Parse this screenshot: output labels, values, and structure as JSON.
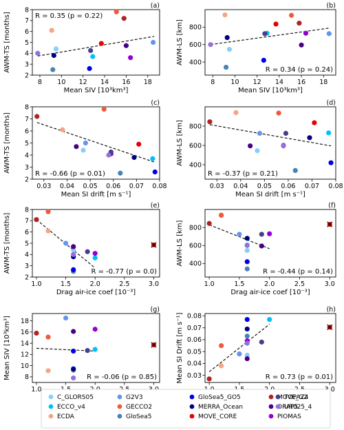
{
  "legend": [
    {
      "name": "C_GLORS05",
      "color": "#87cefa"
    },
    {
      "name": "ECCO_v4",
      "color": "#00bfff"
    },
    {
      "name": "ECDA",
      "color": "#f4a582"
    },
    {
      "name": "G2V3",
      "color": "#6495ed"
    },
    {
      "name": "GECCO2",
      "color": "#ef5a3c"
    },
    {
      "name": "GloSea5",
      "color": "#4682b4"
    },
    {
      "name": "GloSea5_GO5",
      "color": "#0000e6"
    },
    {
      "name": "MERRA_Ocean",
      "color": "#000080"
    },
    {
      "name": "MOVE_CORE",
      "color": "#e60000"
    },
    {
      "name": "MOVE_G2",
      "color": "#b22222"
    },
    {
      "name": "ORAP5",
      "color": "#4b0082"
    },
    {
      "name": "PIOMAS",
      "color": "#9400d3"
    },
    {
      "name": "TOPAZ4",
      "color": "#483d8b"
    },
    {
      "name": "UR025_4",
      "color": "#9370db"
    }
  ],
  "chart_data": [
    {
      "type": "scatter",
      "panel": "(a)",
      "xlabel": "Mean SIV [10³km³]",
      "ylabel": "AWM-TS [months]",
      "xlim": [
        7.3,
        19.1
      ],
      "ylim": [
        2,
        8
      ],
      "xticks": [
        8,
        10,
        12,
        14,
        16,
        18
      ],
      "yticks": [
        2,
        3,
        4,
        5,
        6,
        7,
        8
      ],
      "stat": "R = 0.35 (p = 0.22)",
      "stat_pos": "top-left",
      "fit": [
        [
          7.8,
          3.75
        ],
        [
          18.6,
          5.55
        ]
      ],
      "points": [
        {
          "model": "C_GLORS05",
          "x": 9.5,
          "y": 4.4
        },
        {
          "model": "ECCO_v4",
          "x": 12.9,
          "y": 3.7
        },
        {
          "model": "ECDA",
          "x": 9.1,
          "y": 6.1
        },
        {
          "model": "G2V3",
          "x": 18.5,
          "y": 5.0
        },
        {
          "model": "GECCO2",
          "x": 15.1,
          "y": 7.8
        },
        {
          "model": "GloSea5",
          "x": 9.2,
          "y": 2.5
        },
        {
          "model": "GloSea5_GO5",
          "x": 12.6,
          "y": 2.6
        },
        {
          "model": "MERRA_Ocean",
          "x": 9.3,
          "y": 3.8
        },
        {
          "model": "MOVE_CORE",
          "x": 13.7,
          "y": 4.9
        },
        {
          "model": "MOVE_G2",
          "x": 15.8,
          "y": 7.2
        },
        {
          "model": "ORAP5",
          "x": 16.0,
          "y": 4.7
        },
        {
          "model": "PIOMAS",
          "x": 16.4,
          "y": 3.6
        },
        {
          "model": "TOPAZ4",
          "x": 12.7,
          "y": 4.25
        },
        {
          "model": "UR025_4",
          "x": 7.8,
          "y": 4.0
        }
      ]
    },
    {
      "type": "scatter",
      "panel": "(b)",
      "xlabel": "Mean SIV [10³km³]",
      "ylabel": "AWM-LS [km]",
      "xlim": [
        7.3,
        19.1
      ],
      "ylim": [
        250,
        1000
      ],
      "xticks": [
        8,
        10,
        12,
        14,
        16,
        18
      ],
      "yticks": [
        400,
        600,
        800
      ],
      "stat": "R = 0.34 (p = 0.24)",
      "stat_pos": "bottom-right",
      "fit": [
        [
          7.8,
          600
        ],
        [
          18.6,
          790
        ]
      ],
      "points": [
        {
          "model": "C_GLORS05",
          "x": 9.5,
          "y": 545
        },
        {
          "model": "ECCO_v4",
          "x": 12.9,
          "y": 730
        },
        {
          "model": "ECDA",
          "x": 9.1,
          "y": 940
        },
        {
          "model": "G2V3",
          "x": 18.5,
          "y": 725
        },
        {
          "model": "GECCO2",
          "x": 15.1,
          "y": 935
        },
        {
          "model": "GloSea5",
          "x": 9.2,
          "y": 340
        },
        {
          "model": "GloSea5_GO5",
          "x": 12.6,
          "y": 420
        },
        {
          "model": "MERRA_Ocean",
          "x": 9.3,
          "y": 680
        },
        {
          "model": "MOVE_CORE",
          "x": 13.7,
          "y": 835
        },
        {
          "model": "MOVE_G2",
          "x": 15.8,
          "y": 845
        },
        {
          "model": "ORAP5",
          "x": 16.0,
          "y": 595
        },
        {
          "model": "PIOMAS",
          "x": 16.4,
          "y": 730
        },
        {
          "model": "TOPAZ4",
          "x": 12.7,
          "y": 725
        },
        {
          "model": "UR025_4",
          "x": 7.8,
          "y": 600
        }
      ]
    },
    {
      "type": "scatter",
      "panel": "(c)",
      "xlabel": "Mean SI drift  [m s⁻¹]",
      "ylabel": "AWM-TS [months]",
      "xlim": [
        0.025,
        0.08
      ],
      "ylim": [
        2,
        8
      ],
      "xticks": [
        0.03,
        0.04,
        0.05,
        0.06,
        0.07,
        0.08
      ],
      "yticks": [
        2,
        3,
        4,
        5,
        6,
        7,
        8
      ],
      "stat": "R = -0.66 (p = 0.01)",
      "stat_pos": "bottom-left",
      "fit": [
        [
          0.027,
          6.7
        ],
        [
          0.078,
          3.4
        ]
      ],
      "points": [
        {
          "model": "C_GLORS05",
          "x": 0.047,
          "y": 4.4
        },
        {
          "model": "ECCO_v4",
          "x": 0.077,
          "y": 3.7
        },
        {
          "model": "ECDA",
          "x": 0.038,
          "y": 6.1
        },
        {
          "model": "G2V3",
          "x": 0.048,
          "y": 5.0
        },
        {
          "model": "GECCO2",
          "x": 0.056,
          "y": 7.8
        },
        {
          "model": "GloSea5",
          "x": 0.063,
          "y": 2.5
        },
        {
          "model": "GloSea5_GO5",
          "x": 0.078,
          "y": 2.6
        },
        {
          "model": "MERRA_Ocean",
          "x": 0.069,
          "y": 3.8
        },
        {
          "model": "MOVE_CORE",
          "x": 0.071,
          "y": 4.9
        },
        {
          "model": "MOVE_G2",
          "x": 0.027,
          "y": 7.2
        },
        {
          "model": "ORAP5",
          "x": 0.044,
          "y": 4.7
        },
        {
          "model": "PIOMAS",
          "x": 0.059,
          "y": 4.1
        },
        {
          "model": "TOPAZ4",
          "x": 0.059,
          "y": 4.25
        },
        {
          "model": "UR025_4",
          "x": 0.058,
          "y": 4.0
        }
      ]
    },
    {
      "type": "scatter",
      "panel": "(d)",
      "xlabel": "Mean SI drift  [m s⁻¹]",
      "ylabel": "AWM-LS [km]",
      "xlim": [
        0.025,
        0.08
      ],
      "ylim": [
        250,
        1000
      ],
      "xticks": [
        0.03,
        0.04,
        0.05,
        0.06,
        0.07,
        0.08
      ],
      "yticks": [
        400,
        600,
        800
      ],
      "stat": "R = -0.37 (p = 0.21)",
      "stat_pos": "bottom-left",
      "fit": [
        [
          0.027,
          815
        ],
        [
          0.078,
          595
        ]
      ],
      "points": [
        {
          "model": "C_GLORS05",
          "x": 0.047,
          "y": 545
        },
        {
          "model": "ECCO_v4",
          "x": 0.077,
          "y": 730
        },
        {
          "model": "ECDA",
          "x": 0.038,
          "y": 940
        },
        {
          "model": "G2V3",
          "x": 0.048,
          "y": 725
        },
        {
          "model": "GECCO2",
          "x": 0.056,
          "y": 935
        },
        {
          "model": "GloSea5",
          "x": 0.063,
          "y": 340
        },
        {
          "model": "GloSea5_GO5",
          "x": 0.078,
          "y": 420
        },
        {
          "model": "MERRA_Ocean",
          "x": 0.069,
          "y": 680
        },
        {
          "model": "MOVE_CORE",
          "x": 0.071,
          "y": 835
        },
        {
          "model": "MOVE_G2",
          "x": 0.027,
          "y": 845
        },
        {
          "model": "ORAP5",
          "x": 0.044,
          "y": 595
        },
        {
          "model": "PIOMAS",
          "x": 0.058,
          "y": 600
        },
        {
          "model": "TOPAZ4",
          "x": 0.059,
          "y": 725
        },
        {
          "model": "UR025_4",
          "x": 0.058,
          "y": 595
        }
      ]
    },
    {
      "type": "scatter",
      "panel": "(e)",
      "xlabel": "Drag air-ice coef [10⁻³]",
      "ylabel": "AWM-TS [months]",
      "xlim": [
        0.93,
        3.1
      ],
      "ylim": [
        2,
        8
      ],
      "xticks": [
        1.0,
        1.5,
        2.0,
        2.5,
        3.0
      ],
      "yticks": [
        2,
        3,
        4,
        5,
        6,
        7,
        8
      ],
      "stat": "R = -0.77 (p = 0.0)",
      "stat_pos": "bottom-right",
      "fit": [
        [
          1.0,
          7.1
        ],
        [
          2.0,
          2.8
        ]
      ],
      "points": [
        {
          "model": "C_GLORS05",
          "x": 1.63,
          "y": 4.4
        },
        {
          "model": "ECCO_v4",
          "x": 2.0,
          "y": 3.7
        },
        {
          "model": "ECDA",
          "x": 1.2,
          "y": 6.1
        },
        {
          "model": "G2V3",
          "x": 1.5,
          "y": 5.0
        },
        {
          "model": "GECCO2",
          "x": 1.2,
          "y": 7.8
        },
        {
          "model": "GloSea5",
          "x": 1.63,
          "y": 2.5
        },
        {
          "model": "GloSea5_GO5",
          "x": 1.63,
          "y": 2.65
        },
        {
          "model": "MERRA_Ocean",
          "x": 1.63,
          "y": 3.8
        },
        {
          "model": "MOVE_CORE",
          "x": 3.0,
          "y": 4.85,
          "marker": "x"
        },
        {
          "model": "MOVE_G2",
          "x": 1.0,
          "y": 7.1
        },
        {
          "model": "ORAP5",
          "x": 1.63,
          "y": 4.7
        },
        {
          "model": "PIOMAS",
          "x": 2.0,
          "y": 4.1
        },
        {
          "model": "TOPAZ4",
          "x": 1.87,
          "y": 4.25
        },
        {
          "model": "UR025_4",
          "x": 1.63,
          "y": 4.0
        }
      ]
    },
    {
      "type": "scatter",
      "panel": "(f)",
      "xlabel": "Drag air-ice coef [10⁻³]",
      "ylabel": "AWM-LS [km]",
      "xlim": [
        0.93,
        3.1
      ],
      "ylim": [
        250,
        1000
      ],
      "xticks": [
        1.0,
        1.5,
        2.0,
        2.5,
        3.0
      ],
      "yticks": [
        400,
        600,
        800
      ],
      "stat": "R = -0.44 (p = 0.14)",
      "stat_pos": "bottom-right",
      "fit": [
        [
          1.0,
          830
        ],
        [
          2.0,
          565
        ]
      ],
      "points": [
        {
          "model": "C_GLORS05",
          "x": 1.63,
          "y": 545
        },
        {
          "model": "ECCO_v4",
          "x": 1.63,
          "y": 605
        },
        {
          "model": "ECDA",
          "x": 1.2,
          "y": 940
        },
        {
          "model": "G2V3",
          "x": 1.5,
          "y": 725
        },
        {
          "model": "GECCO2",
          "x": 1.2,
          "y": 935
        },
        {
          "model": "GloSea5",
          "x": 1.63,
          "y": 340
        },
        {
          "model": "GloSea5_GO5",
          "x": 1.63,
          "y": 420
        },
        {
          "model": "MERRA_Ocean",
          "x": 1.63,
          "y": 680
        },
        {
          "model": "MOVE_CORE",
          "x": 3.0,
          "y": 835,
          "marker": "x"
        },
        {
          "model": "MOVE_G2",
          "x": 1.0,
          "y": 845
        },
        {
          "model": "ORAP5",
          "x": 1.87,
          "y": 595
        },
        {
          "model": "PIOMAS",
          "x": 2.0,
          "y": 730
        },
        {
          "model": "TOPAZ4",
          "x": 1.87,
          "y": 725
        },
        {
          "model": "UR025_4",
          "x": 1.63,
          "y": 600
        }
      ]
    },
    {
      "type": "scatter",
      "panel": "(g)",
      "xlabel": "Drag air-ice coef [10⁻³]",
      "ylabel": "Mean SIV [10³km³]",
      "xlim": [
        0.93,
        3.1
      ],
      "ylim": [
        7,
        19.3
      ],
      "xticks": [
        1.0,
        1.5,
        2.0,
        2.5,
        3.0
      ],
      "yticks": [
        8,
        10,
        12,
        14,
        16,
        18
      ],
      "stat": "R = -0.06 (p = 0.85)",
      "stat_pos": "bottom-right",
      "fit": [
        [
          1.0,
          13.1
        ],
        [
          2.0,
          12.6
        ]
      ],
      "points": [
        {
          "model": "C_GLORS05",
          "x": 1.63,
          "y": 9.5
        },
        {
          "model": "ECCO_v4",
          "x": 2.0,
          "y": 12.9
        },
        {
          "model": "ECDA",
          "x": 1.2,
          "y": 9.1
        },
        {
          "model": "G2V3",
          "x": 1.5,
          "y": 18.5
        },
        {
          "model": "GECCO2",
          "x": 1.2,
          "y": 15.1
        },
        {
          "model": "GloSea5",
          "x": 1.63,
          "y": 9.2
        },
        {
          "model": "GloSea5_GO5",
          "x": 1.63,
          "y": 12.6
        },
        {
          "model": "MERRA_Ocean",
          "x": 1.63,
          "y": 9.4
        },
        {
          "model": "MOVE_CORE",
          "x": 3.0,
          "y": 13.7,
          "marker": "x"
        },
        {
          "model": "MOVE_G2",
          "x": 1.0,
          "y": 15.8
        },
        {
          "model": "ORAP5",
          "x": 1.63,
          "y": 16.1
        },
        {
          "model": "PIOMAS",
          "x": 2.0,
          "y": 16.5
        },
        {
          "model": "TOPAZ4",
          "x": 1.87,
          "y": 12.7
        },
        {
          "model": "UR025_4",
          "x": 1.63,
          "y": 7.8
        }
      ]
    },
    {
      "type": "scatter",
      "panel": "(h)",
      "xlabel": "Drag air-ice coef [10⁻³]",
      "ylabel": "Mean SI Drift [m s⁻¹]",
      "xlim": [
        0.93,
        3.1
      ],
      "ylim": [
        0.024,
        0.082
      ],
      "xticks": [
        1.0,
        1.5,
        2.0,
        2.5,
        3.0
      ],
      "yticks": [
        0.03,
        0.04,
        0.05,
        0.06,
        0.07,
        0.08
      ],
      "stat": "R = 0.73 (p = 0.01)",
      "stat_pos": "bottom-right",
      "fit": [
        [
          1.0,
          0.033
        ],
        [
          2.0,
          0.073
        ]
      ],
      "points": [
        {
          "model": "C_GLORS05",
          "x": 1.63,
          "y": 0.047
        },
        {
          "model": "ECCO_v4",
          "x": 2.0,
          "y": 0.077
        },
        {
          "model": "ECDA",
          "x": 1.2,
          "y": 0.038
        },
        {
          "model": "G2V3",
          "x": 1.5,
          "y": 0.048
        },
        {
          "model": "GECCO2",
          "x": 1.2,
          "y": 0.055
        },
        {
          "model": "GloSea5",
          "x": 1.63,
          "y": 0.063
        },
        {
          "model": "GloSea5_GO5",
          "x": 1.63,
          "y": 0.077
        },
        {
          "model": "MERRA_Ocean",
          "x": 1.63,
          "y": 0.069
        },
        {
          "model": "MOVE_CORE",
          "x": 3.0,
          "y": 0.0705,
          "marker": "x"
        },
        {
          "model": "MOVE_G2",
          "x": 1.0,
          "y": 0.027
        },
        {
          "model": "ORAP5",
          "x": 1.63,
          "y": 0.044
        },
        {
          "model": "PIOMAS",
          "x": 1.63,
          "y": 0.059
        },
        {
          "model": "TOPAZ4",
          "x": 1.87,
          "y": 0.058
        },
        {
          "model": "UR025_4",
          "x": 1.63,
          "y": 0.057
        }
      ]
    }
  ]
}
